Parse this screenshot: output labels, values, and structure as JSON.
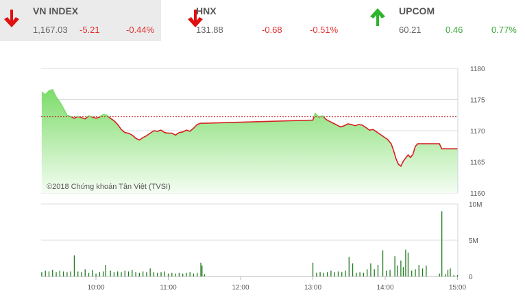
{
  "indices": [
    {
      "name": "VN INDEX",
      "value": "1,167.03",
      "change": "-5.21",
      "percent": "-0.44%",
      "direction": "down"
    },
    {
      "name": "HNX",
      "value": "131.88",
      "change": "-0.68",
      "percent": "-0.51%",
      "direction": "down"
    },
    {
      "name": "UPCOM",
      "value": "60.21",
      "change": "0.46",
      "percent": "0.77%",
      "direction": "up"
    }
  ],
  "colors": {
    "down": "#e03030",
    "up": "#3aa63a",
    "line": "#d42020",
    "area": "#8fe07f",
    "volume": "#1e7a1e"
  },
  "chart_data": [
    {
      "type": "area",
      "watermark": "©2018 Chứng khoán Tân Việt (TVSI)",
      "reference": 1172.24,
      "ylim": [
        1160,
        1180
      ],
      "yticks": [
        "1180",
        "1175",
        "1170",
        "1165",
        "1160"
      ],
      "grid": true,
      "points": [
        [
          "9:15",
          1176.2
        ],
        [
          "9:18",
          1175.8
        ],
        [
          "9:21",
          1176.4
        ],
        [
          "9:24",
          1176.6
        ],
        [
          "9:27",
          1175.4
        ],
        [
          "9:30",
          1174.6
        ],
        [
          "9:33",
          1173.6
        ],
        [
          "9:36",
          1172.5
        ],
        [
          "9:39",
          1172.3
        ],
        [
          "9:42",
          1172.0
        ],
        [
          "9:45",
          1172.3
        ],
        [
          "9:48",
          1172.1
        ],
        [
          "9:51",
          1171.9
        ],
        [
          "9:54",
          1172.4
        ],
        [
          "9:57",
          1172.2
        ],
        [
          "10:00",
          1172.0
        ],
        [
          "10:03",
          1172.2
        ],
        [
          "10:06",
          1172.6
        ],
        [
          "10:09",
          1172.5
        ],
        [
          "10:12",
          1172.0
        ],
        [
          "10:15",
          1171.6
        ],
        [
          "10:18",
          1171.0
        ],
        [
          "10:21",
          1170.2
        ],
        [
          "10:24",
          1169.7
        ],
        [
          "10:27",
          1169.6
        ],
        [
          "10:30",
          1169.3
        ],
        [
          "10:33",
          1168.8
        ],
        [
          "10:36",
          1168.5
        ],
        [
          "10:39",
          1168.9
        ],
        [
          "10:42",
          1169.2
        ],
        [
          "10:45",
          1169.6
        ],
        [
          "10:48",
          1170.0
        ],
        [
          "10:51",
          1169.9
        ],
        [
          "10:54",
          1170.1
        ],
        [
          "10:57",
          1169.7
        ],
        [
          "11:00",
          1169.6
        ],
        [
          "11:03",
          1169.6
        ],
        [
          "11:06",
          1169.3
        ],
        [
          "11:09",
          1169.7
        ],
        [
          "11:12",
          1169.8
        ],
        [
          "11:15",
          1170.1
        ],
        [
          "11:18",
          1169.9
        ],
        [
          "11:21",
          1170.4
        ],
        [
          "11:24",
          1171.0
        ],
        [
          "11:27",
          1171.2
        ],
        [
          "11:30",
          1171.2
        ],
        [
          "13:00",
          1171.7
        ],
        [
          "13:02",
          1172.8
        ],
        [
          "13:05",
          1172.2
        ],
        [
          "13:08",
          1172.4
        ],
        [
          "13:11",
          1171.8
        ],
        [
          "13:14",
          1171.5
        ],
        [
          "13:17",
          1171.2
        ],
        [
          "13:20",
          1170.9
        ],
        [
          "13:23",
          1170.6
        ],
        [
          "13:26",
          1170.8
        ],
        [
          "13:29",
          1171.1
        ],
        [
          "13:32",
          1171.0
        ],
        [
          "13:35",
          1170.8
        ],
        [
          "13:38",
          1171.0
        ],
        [
          "13:41",
          1170.9
        ],
        [
          "13:44",
          1170.5
        ],
        [
          "13:47",
          1170.1
        ],
        [
          "13:50",
          1170.2
        ],
        [
          "13:53",
          1169.8
        ],
        [
          "13:56",
          1169.4
        ],
        [
          "13:59",
          1169.0
        ],
        [
          "14:02",
          1168.6
        ],
        [
          "14:05",
          1167.9
        ],
        [
          "14:07",
          1166.8
        ],
        [
          "14:09",
          1165.5
        ],
        [
          "14:11",
          1164.6
        ],
        [
          "14:13",
          1164.3
        ],
        [
          "14:15",
          1165.1
        ],
        [
          "14:17",
          1165.6
        ],
        [
          "14:19",
          1166.1
        ],
        [
          "14:21",
          1165.7
        ],
        [
          "14:23",
          1166.2
        ],
        [
          "14:25",
          1167.5
        ],
        [
          "14:27",
          1167.9
        ],
        [
          "14:35",
          1167.9
        ],
        [
          "14:45",
          1167.9
        ],
        [
          "14:47",
          1167.1
        ],
        [
          "15:00",
          1167.1
        ]
      ]
    },
    {
      "type": "bar",
      "ylim": [
        0,
        10
      ],
      "yticks": [
        "10M",
        "5M",
        "0"
      ],
      "xticks": [
        "10:00",
        "11:00",
        "12:00",
        "13:00",
        "14:00",
        "15:00"
      ],
      "unit": "M",
      "bars": [
        [
          "9:15",
          0.6
        ],
        [
          "9:18",
          0.8
        ],
        [
          "9:21",
          0.7
        ],
        [
          "9:24",
          0.9
        ],
        [
          "9:27",
          0.6
        ],
        [
          "9:30",
          0.8
        ],
        [
          "9:33",
          0.7
        ],
        [
          "9:36",
          0.6
        ],
        [
          "9:39",
          0.7
        ],
        [
          "9:42",
          2.9
        ],
        [
          "9:45",
          0.7
        ],
        [
          "9:48",
          0.6
        ],
        [
          "9:51",
          1.0
        ],
        [
          "9:54",
          0.5
        ],
        [
          "9:57",
          0.9
        ],
        [
          "10:00",
          0.4
        ],
        [
          "10:03",
          0.6
        ],
        [
          "10:06",
          0.7
        ],
        [
          "10:08",
          1.6
        ],
        [
          "10:12",
          0.8
        ],
        [
          "10:15",
          0.6
        ],
        [
          "10:18",
          0.7
        ],
        [
          "10:21",
          0.6
        ],
        [
          "10:24",
          0.8
        ],
        [
          "10:27",
          0.7
        ],
        [
          "10:30",
          0.9
        ],
        [
          "10:33",
          0.6
        ],
        [
          "10:36",
          0.5
        ],
        [
          "10:39",
          0.7
        ],
        [
          "10:42",
          0.6
        ],
        [
          "10:45",
          1.1
        ],
        [
          "10:48",
          0.6
        ],
        [
          "10:51",
          0.5
        ],
        [
          "10:54",
          0.6
        ],
        [
          "10:57",
          0.7
        ],
        [
          "11:00",
          0.4
        ],
        [
          "11:03",
          0.5
        ],
        [
          "11:06",
          0.4
        ],
        [
          "11:09",
          0.5
        ],
        [
          "11:12",
          0.4
        ],
        [
          "11:15",
          0.5
        ],
        [
          "11:18",
          0.6
        ],
        [
          "11:21",
          0.4
        ],
        [
          "11:24",
          0.5
        ],
        [
          "11:27",
          1.9
        ],
        [
          "11:28",
          1.5
        ],
        [
          "11:30",
          0.3
        ],
        [
          "13:00",
          1.9
        ],
        [
          "13:03",
          0.5
        ],
        [
          "13:06",
          0.6
        ],
        [
          "13:09",
          0.5
        ],
        [
          "13:12",
          0.6
        ],
        [
          "13:15",
          0.8
        ],
        [
          "13:18",
          0.6
        ],
        [
          "13:21",
          0.7
        ],
        [
          "13:24",
          0.6
        ],
        [
          "13:27",
          0.8
        ],
        [
          "13:30",
          2.7
        ],
        [
          "13:33",
          1.8
        ],
        [
          "13:36",
          0.5
        ],
        [
          "13:39",
          0.6
        ],
        [
          "13:42",
          0.5
        ],
        [
          "13:45",
          1.0
        ],
        [
          "13:48",
          1.8
        ],
        [
          "13:51",
          1.0
        ],
        [
          "13:54",
          1.6
        ],
        [
          "13:58",
          3.6
        ],
        [
          "14:01",
          0.8
        ],
        [
          "14:04",
          0.9
        ],
        [
          "14:08",
          2.8
        ],
        [
          "14:10",
          1.5
        ],
        [
          "14:13",
          2.2
        ],
        [
          "14:15",
          1.3
        ],
        [
          "14:17",
          3.7
        ],
        [
          "14:19",
          3.3
        ],
        [
          "14:22",
          0.8
        ],
        [
          "14:25",
          1.0
        ],
        [
          "14:28",
          1.6
        ],
        [
          "14:31",
          1.1
        ],
        [
          "14:34",
          1.5
        ],
        [
          "14:45",
          0.4
        ],
        [
          "14:47",
          9.0
        ],
        [
          "14:50",
          0.3
        ],
        [
          "14:52",
          0.9
        ],
        [
          "14:54",
          1.1
        ],
        [
          "14:57",
          0.2
        ],
        [
          "15:00",
          0.2
        ]
      ]
    }
  ]
}
